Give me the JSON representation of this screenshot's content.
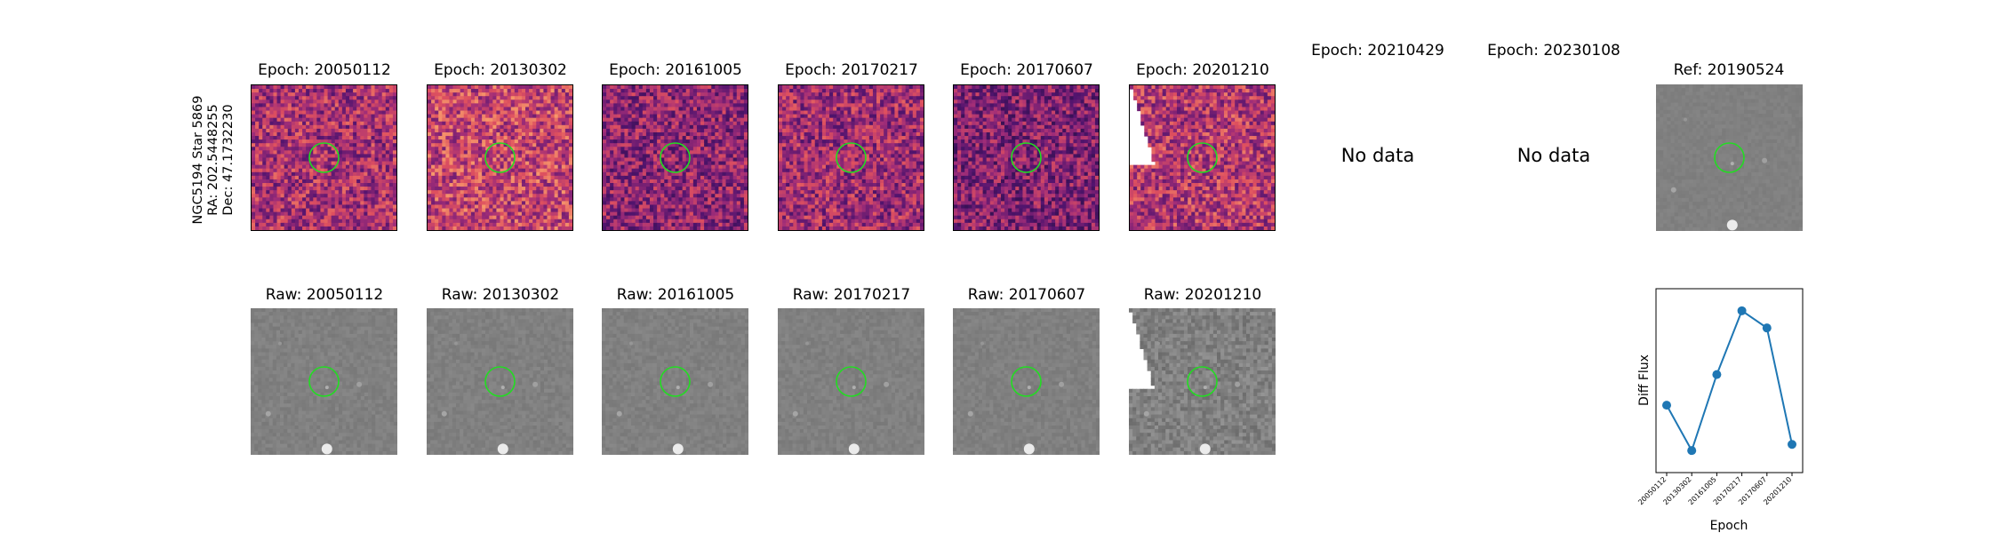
{
  "object_label": {
    "line1": "NGC5194 Star 5869",
    "line2": "RA: 202.5448255",
    "line3": "Dec: 47.1732230"
  },
  "diff_panels": [
    {
      "title": "Epoch: 20050112",
      "has_data": true,
      "palette": "magma"
    },
    {
      "title": "Epoch: 20130302",
      "has_data": true,
      "palette": "magma"
    },
    {
      "title": "Epoch: 20161005",
      "has_data": true,
      "palette": "magma"
    },
    {
      "title": "Epoch: 20170217",
      "has_data": true,
      "palette": "magma"
    },
    {
      "title": "Epoch: 20170607",
      "has_data": true,
      "palette": "magma"
    },
    {
      "title": "Epoch: 20201210",
      "has_data": true,
      "palette": "magma",
      "partial_coverage": true
    },
    {
      "title": "Epoch: 20210429",
      "has_data": false,
      "message": "No data"
    },
    {
      "title": "Epoch: 20230108",
      "has_data": false,
      "message": "No data"
    }
  ],
  "reference_panel": {
    "title": "Ref: 20190524",
    "palette": "gray"
  },
  "raw_panels": [
    {
      "title": "Raw: 20050112"
    },
    {
      "title": "Raw: 20130302"
    },
    {
      "title": "Raw: 20161005"
    },
    {
      "title": "Raw: 20170217"
    },
    {
      "title": "Raw: 20170607"
    },
    {
      "title": "Raw: 20201210",
      "partial_coverage": true
    }
  ],
  "colors": {
    "aperture_circle": "#22dd22",
    "series_line": "#1f77b4"
  },
  "chart_data": {
    "type": "line",
    "xlabel": "Epoch",
    "ylabel": "Diff Flux",
    "categories": [
      "20050112",
      "20130302",
      "20161005",
      "20170217",
      "20170607",
      "20201210"
    ],
    "values": [
      0.55,
      0.18,
      0.8,
      1.32,
      1.18,
      0.23
    ],
    "ylim": [
      0.0,
      1.5
    ],
    "y_ticks_shown": false,
    "grid": false,
    "marker": "circle"
  }
}
